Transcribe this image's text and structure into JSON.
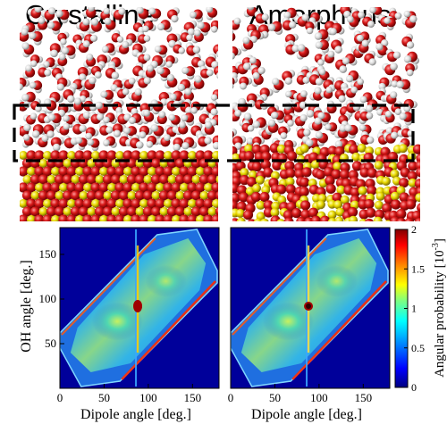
{
  "figure": {
    "panels": [
      {
        "title": "Crystalline"
      },
      {
        "title": "Amorphous"
      }
    ]
  },
  "chart_data": [
    {
      "type": "heatmap",
      "panel": "Crystalline",
      "xlabel": "Dipole angle [deg.]",
      "ylabel": "OH angle [deg.]",
      "x_ticks": [
        "0",
        "50",
        "100",
        "150"
      ],
      "y_ticks": [
        "50",
        "100",
        "150"
      ],
      "xlim": [
        0,
        180
      ],
      "ylim": [
        0,
        180
      ]
    },
    {
      "type": "heatmap",
      "panel": "Amorphous",
      "xlabel": "Dipole angle [deg.]",
      "x_ticks": [
        "0",
        "50",
        "100",
        "150"
      ],
      "xlim": [
        0,
        180
      ],
      "ylim": [
        0,
        180
      ],
      "colorbar": {
        "label": "Angular probability [10",
        "label_exponent": "-3",
        "label_close": "]",
        "ticks": [
          "0",
          "0.5",
          "1",
          "1.5",
          "2"
        ],
        "range": [
          0,
          2
        ],
        "colormap": [
          "#000080",
          "#0000ff",
          "#00bfff",
          "#00ffff",
          "#7fff7f",
          "#ffff00",
          "#ff8000",
          "#ff0000",
          "#800000"
        ]
      }
    }
  ],
  "colors": {
    "oxygen": "#c81414",
    "hydrogen": "#e4e4e4",
    "silicon": "#e8d800",
    "heatmap_background": "#0000a0",
    "dashed_box": "#000000"
  }
}
